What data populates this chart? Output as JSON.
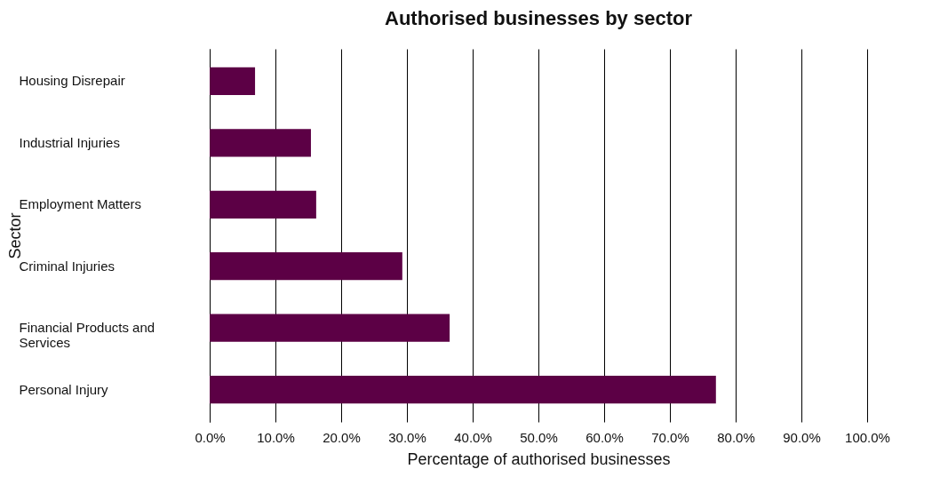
{
  "chart_data": {
    "type": "bar",
    "orientation": "horizontal",
    "title": "Authorised businesses by sector",
    "xlabel": "Percentage of authorised businesses",
    "ylabel": "Sector",
    "categories": [
      "Housing Disrepair",
      "Industrial Injuries",
      "Employment Matters",
      "Criminal Injuries",
      "Financial Products and Services",
      "Personal Injury"
    ],
    "values": [
      6.9,
      15.4,
      16.2,
      29.3,
      36.5,
      77.0
    ],
    "color": "#5c0045",
    "xlim": [
      0,
      100
    ],
    "xticks": [
      {
        "value": 0,
        "label": "0.0%"
      },
      {
        "value": 10,
        "label": "10.0%"
      },
      {
        "value": 20,
        "label": "20.0%"
      },
      {
        "value": 30,
        "label": "30.0%"
      },
      {
        "value": 40,
        "label": "40.0%"
      },
      {
        "value": 50,
        "label": "50.0%"
      },
      {
        "value": 60,
        "label": "60.0%"
      },
      {
        "value": 70,
        "label": "70.0%"
      },
      {
        "value": 80,
        "label": "80.0%"
      },
      {
        "value": 90,
        "label": "90.0%"
      },
      {
        "value": 100,
        "label": "100.0%"
      }
    ],
    "grid": "x"
  }
}
